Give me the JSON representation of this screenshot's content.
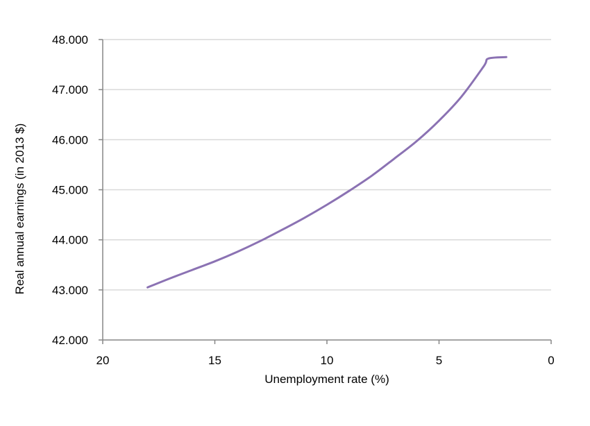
{
  "chart_data": {
    "type": "line",
    "xlabel": "Unemployment rate (%)",
    "ylabel": "Real annual earnings (in 2013 $)",
    "xlim": [
      20,
      0
    ],
    "ylim": [
      42000,
      48000
    ],
    "x_reversed": true,
    "grid": "horizontal",
    "legend": "none",
    "x_ticks": [
      {
        "value": 20,
        "label": "20"
      },
      {
        "value": 15,
        "label": "15"
      },
      {
        "value": 10,
        "label": "10"
      },
      {
        "value": 5,
        "label": "5"
      },
      {
        "value": 0,
        "label": "0"
      }
    ],
    "y_ticks": [
      {
        "value": 42000,
        "label": "42.000"
      },
      {
        "value": 43000,
        "label": "43.000"
      },
      {
        "value": 44000,
        "label": "44.000"
      },
      {
        "value": 45000,
        "label": "45.000"
      },
      {
        "value": 46000,
        "label": "46.000"
      },
      {
        "value": 47000,
        "label": "47.000"
      },
      {
        "value": 48000,
        "label": "48.000"
      }
    ],
    "series": [
      {
        "color": "#8b72b3",
        "points": [
          [
            18,
            43050
          ],
          [
            17,
            43230
          ],
          [
            16,
            43400
          ],
          [
            15,
            43570
          ],
          [
            14,
            43760
          ],
          [
            13,
            43970
          ],
          [
            12,
            44200
          ],
          [
            11,
            44440
          ],
          [
            10,
            44700
          ],
          [
            9,
            44980
          ],
          [
            8,
            45280
          ],
          [
            7,
            45620
          ],
          [
            6,
            45970
          ],
          [
            5,
            46380
          ],
          [
            4,
            46860
          ],
          [
            3,
            47470
          ],
          [
            2.8,
            47620
          ],
          [
            2,
            47650
          ]
        ]
      }
    ]
  },
  "colors": {
    "grid": "#d9d9d9",
    "axis": "#868686",
    "line": "#8b72b3"
  }
}
